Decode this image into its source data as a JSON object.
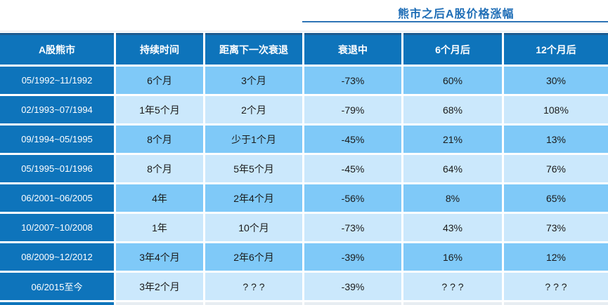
{
  "title": "熊市之后A股价格涨幅",
  "colors": {
    "header_blue": "#0e74bb",
    "navy_border": "#1d5c91",
    "row_shade_dark": "#7fc9f8",
    "row_shade_light": "#cbe8fc",
    "title_blue": "#1e6db6",
    "title_underline": "#2e74b5",
    "cell_text": "#1a1a1a",
    "header_text": "#ffffff"
  },
  "chart_data": {
    "type": "table",
    "title": "熊市之后A股价格涨幅",
    "columns": [
      "A股熊市",
      "持续时间",
      "距离下一次衰退",
      "衰退中",
      "6个月后",
      "12个月后"
    ],
    "rows": [
      [
        "05/1992~11/1992",
        "6个月",
        "3个月",
        "-73%",
        "60%",
        "30%"
      ],
      [
        "02/1993~07/1994",
        "1年5个月",
        "2个月",
        "-79%",
        "68%",
        "108%"
      ],
      [
        "09/1994~05/1995",
        "8个月",
        "少于1个月",
        "-45%",
        "21%",
        "13%"
      ],
      [
        "05/1995~01/1996",
        "8个月",
        "5年5个月",
        "-45%",
        "64%",
        "76%"
      ],
      [
        "06/2001~06/2005",
        "4年",
        "2年4个月",
        "-56%",
        "8%",
        "65%"
      ],
      [
        "10/2007~10/2008",
        "1年",
        "10个月",
        "-73%",
        "43%",
        "73%"
      ],
      [
        "08/2009~12/2012",
        "3年4个月",
        "2年6个月",
        "-39%",
        "16%",
        "12%"
      ],
      [
        "06/2015至今",
        "3年2个月",
        "? ? ?",
        "-39%",
        "? ? ?",
        "? ? ?"
      ]
    ],
    "layout": {
      "first_column_is_header": true,
      "alternating_row_shading": true,
      "grid_gaps_white": true
    }
  }
}
